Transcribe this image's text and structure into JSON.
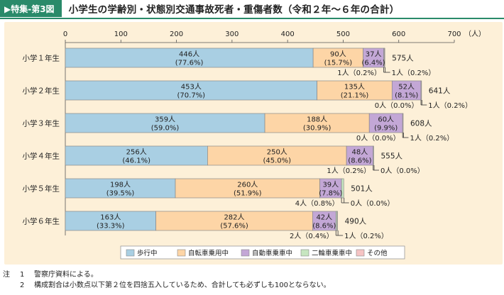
{
  "header": {
    "tag": "▶特集-第3図",
    "title": "小学生の学齢別・状態別交通事故死者・重傷者数（令和２年～６年の合計）"
  },
  "notes": [
    {
      "lead": "注",
      "num": "1",
      "text": "警察庁資料による。"
    },
    {
      "lead": "",
      "num": "2",
      "text": "構成割合は小数点以下第２位を四捨五入しているため、合計しても必ずしも100とならない。"
    }
  ],
  "colors": {
    "walking": "#a9cfe3",
    "bicycle": "#fdd5a6",
    "car": "#c3a7d6",
    "motorcycle": "#c6e6c0",
    "other": "#f6c4c4",
    "panel": "#fdf0d8",
    "accent": "#2a8a6a"
  },
  "chart_data": {
    "type": "bar",
    "orientation": "horizontal",
    "stacked": true,
    "xlim": [
      0,
      700
    ],
    "x_ticks": [
      "0",
      "100",
      "200",
      "300",
      "400",
      "500",
      "600",
      "700"
    ],
    "x_unit": "（人）",
    "categories": [
      "小学１年生",
      "小学２年生",
      "小学３年生",
      "小学４年生",
      "小学５年生",
      "小学６年生"
    ],
    "totals": [
      "575人",
      "641人",
      "608人",
      "555人",
      "501人",
      "490人"
    ],
    "legend_position": "bottom",
    "series": [
      {
        "name": "歩行中",
        "key": "walking",
        "values": [
          446,
          453,
          359,
          256,
          198,
          163
        ],
        "labels": [
          "446人",
          "453人",
          "359人",
          "256人",
          "198人",
          "163人"
        ],
        "pct": [
          "(77.6%)",
          "(70.7%)",
          "(59.0%)",
          "(46.1%)",
          "(39.5%)",
          "(33.3%)"
        ]
      },
      {
        "name": "自転車乗用中",
        "key": "bicycle",
        "values": [
          90,
          135,
          188,
          250,
          260,
          282
        ],
        "labels": [
          "90人",
          "135人",
          "188人",
          "250人",
          "260人",
          "282人"
        ],
        "pct": [
          "(15.7%)",
          "(21.1%)",
          "(30.9%)",
          "(45.0%)",
          "(51.9%)",
          "(57.6%)"
        ]
      },
      {
        "name": "自動車乗車中",
        "key": "car",
        "values": [
          37,
          52,
          60,
          48,
          39,
          42
        ],
        "labels": [
          "37人",
          "52人",
          "60人",
          "48人",
          "39人",
          "42人"
        ],
        "pct": [
          "(6.4%)",
          "(8.1%)",
          "(9.9%)",
          "(8.6%)",
          "(7.8%)",
          "(8.6%)"
        ]
      },
      {
        "name": "二輪車乗車中",
        "key": "motorcycle",
        "values": [
          1,
          0,
          0,
          1,
          4,
          2
        ],
        "callouts": [
          "1人（0.2%）",
          "0人（0.0%）",
          "0人（0.0%）",
          "1人（0.2%）",
          "4人（0.8%）",
          "2人（0.4%）"
        ]
      },
      {
        "name": "その他",
        "key": "other",
        "values": [
          1,
          1,
          1,
          0,
          0,
          1
        ],
        "callouts": [
          "1人（0.2%）",
          "1人（0.2%）",
          "1人（0.2%）",
          "0人（0.0%）",
          "0人（0.0%）",
          "1人（0.2%）"
        ]
      }
    ]
  }
}
